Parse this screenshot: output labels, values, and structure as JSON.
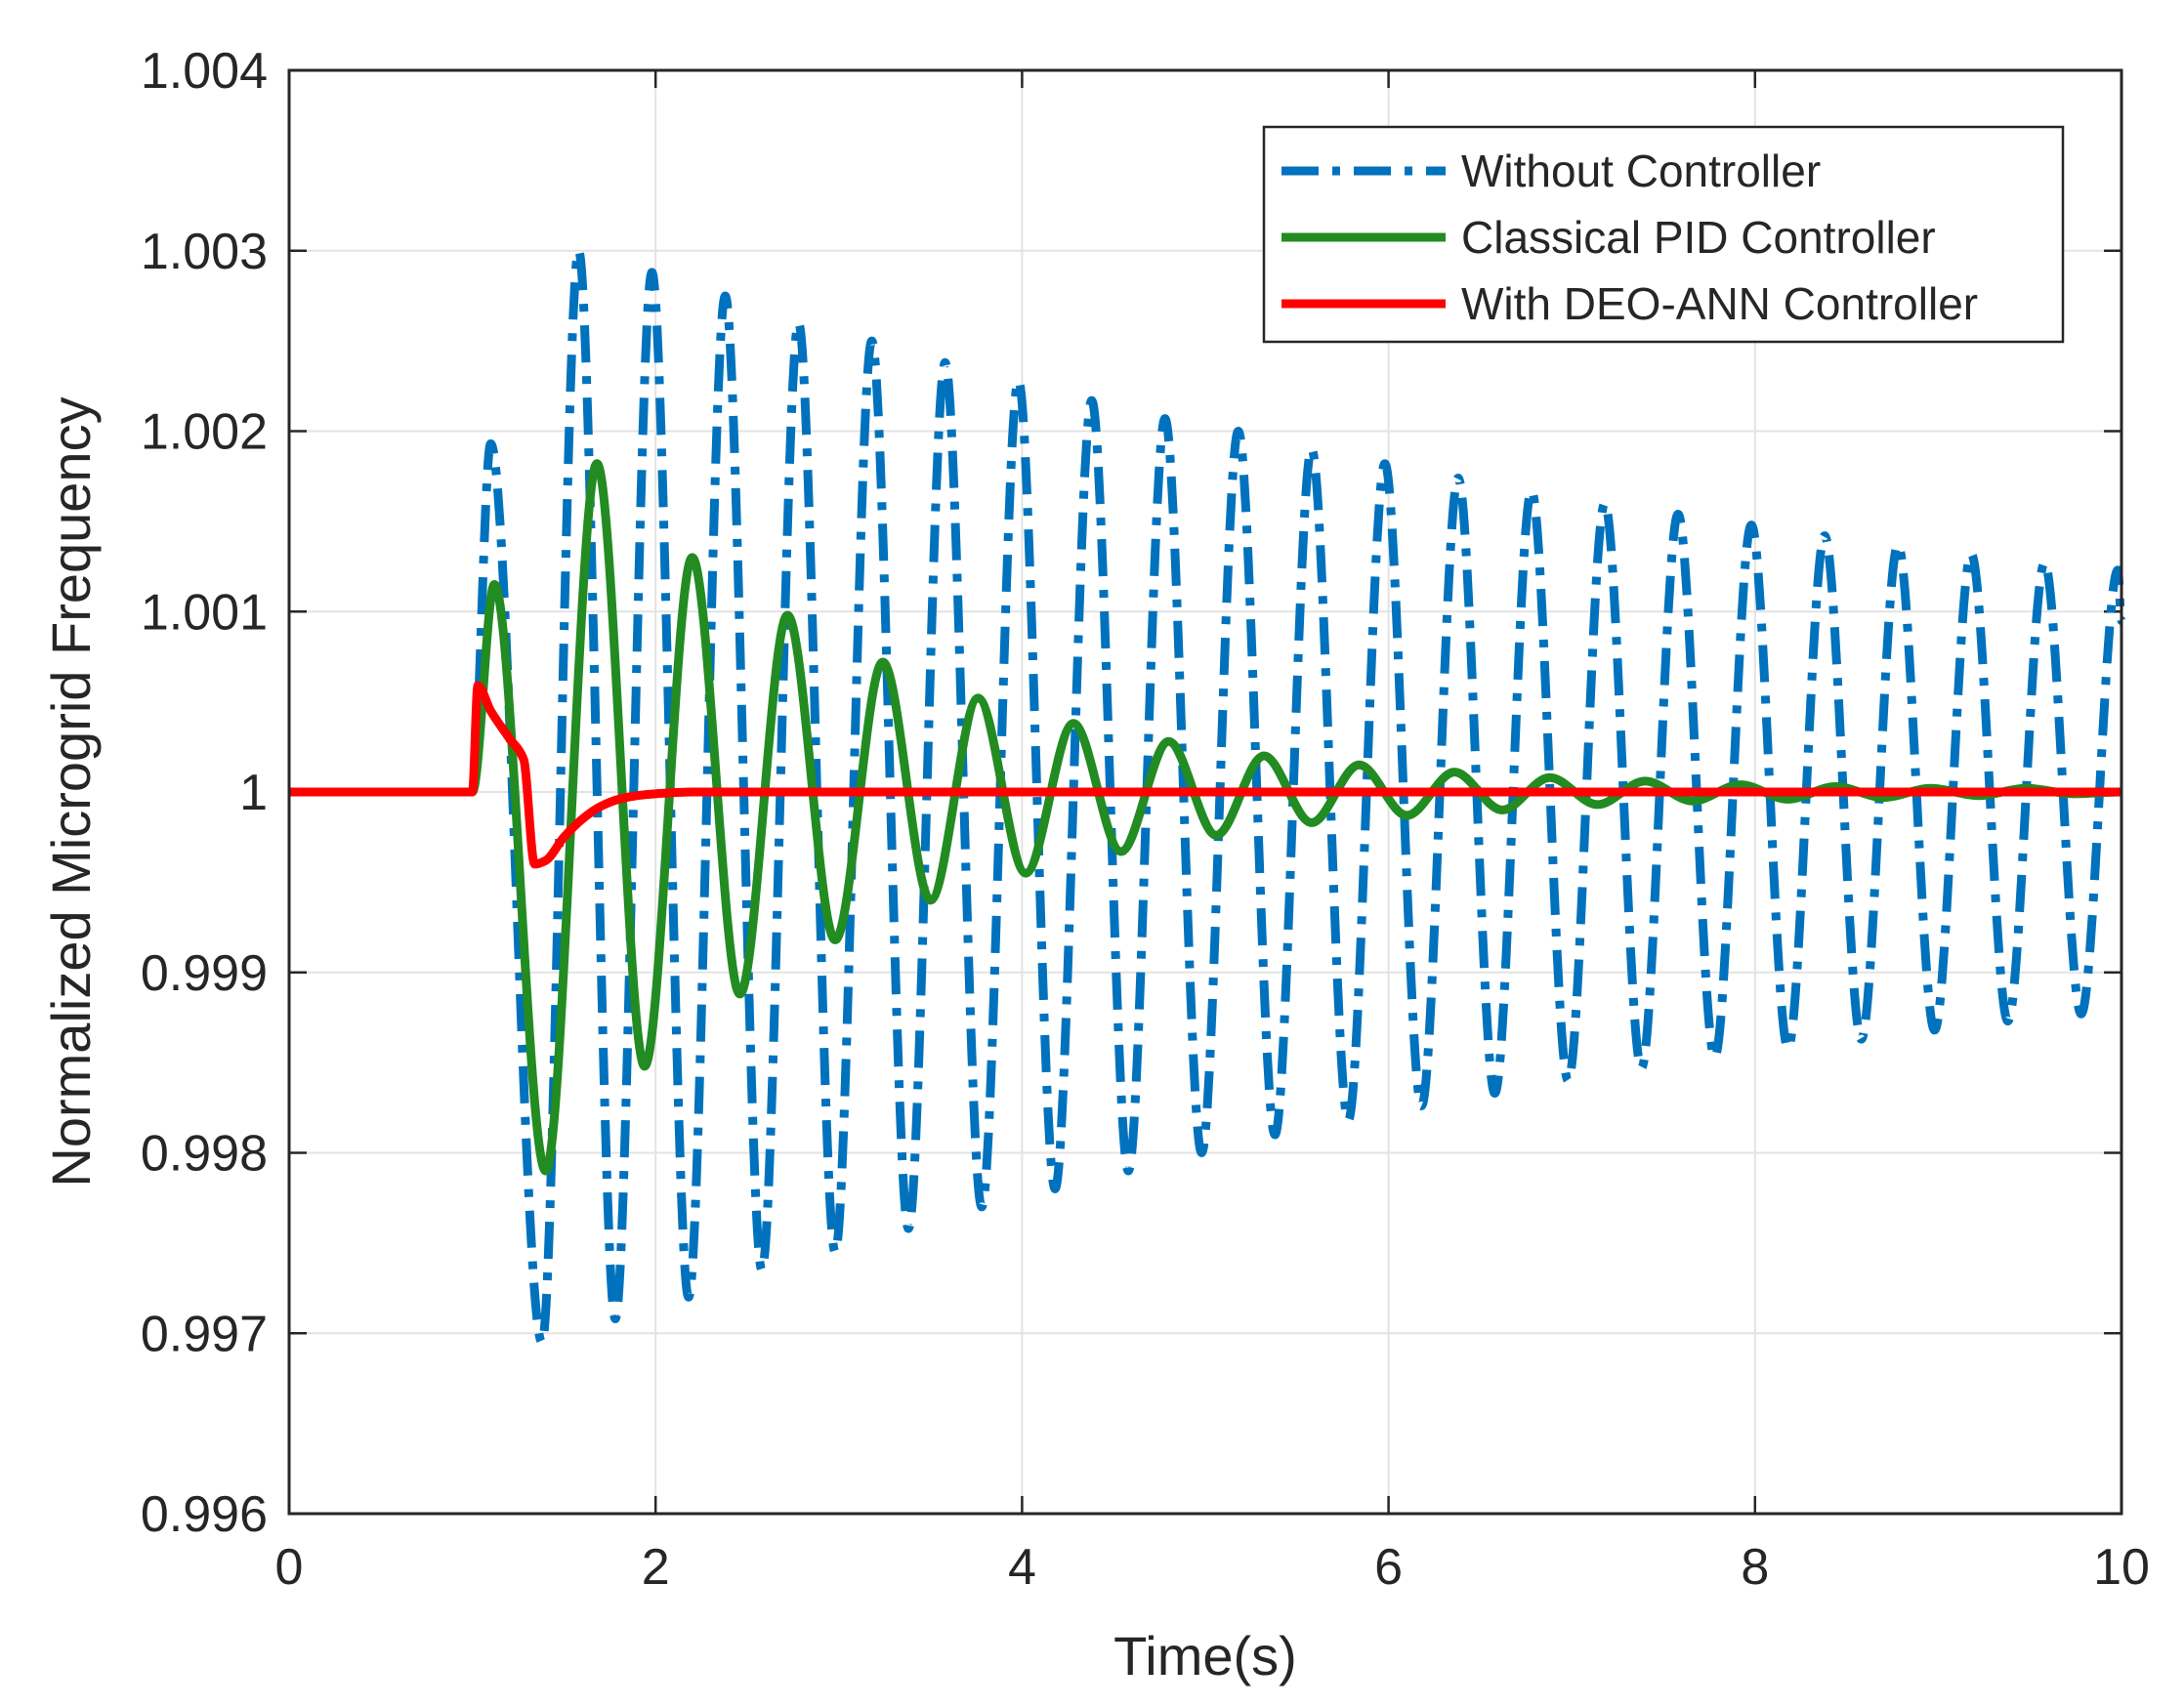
{
  "chart_data": {
    "type": "line",
    "title": "",
    "xlabel": "Time(s)",
    "ylabel": "Normalized Microgrid Frequency",
    "xlim": [
      0,
      10
    ],
    "ylim": [
      0.996,
      1.004
    ],
    "xticks": [
      0,
      2,
      4,
      6,
      8,
      10
    ],
    "xtick_labels": [
      "0",
      "2",
      "4",
      "6",
      "8",
      "10"
    ],
    "yticks": [
      0.996,
      0.997,
      0.998,
      0.999,
      1.0,
      1.001,
      1.002,
      1.003,
      1.004
    ],
    "ytick_labels": [
      "0.996",
      "0.997",
      "0.998",
      "0.999",
      "1",
      "1.001",
      "1.002",
      "1.003",
      "1.004"
    ],
    "grid": true,
    "legend_position": "top-right",
    "series": [
      {
        "name": "Without Controller",
        "color": "#0072BD",
        "style": "dash-dot",
        "x": [
          0,
          1.0,
          1.1,
          1.38,
          1.58,
          1.78,
          1.98,
          2.18,
          2.38,
          2.58,
          2.78,
          2.98,
          3.18,
          3.38,
          3.58,
          3.78,
          3.98,
          4.18,
          4.38,
          4.58,
          4.78,
          4.98,
          5.18,
          5.38,
          5.58,
          5.78,
          5.98,
          6.18,
          6.38,
          6.58,
          6.78,
          6.98,
          7.18,
          7.38,
          7.58,
          7.78,
          7.98,
          8.18,
          8.38,
          8.58,
          8.78,
          8.98,
          9.18,
          9.38,
          9.58,
          9.78,
          9.98,
          10.0
        ],
        "y": [
          1.0,
          1.0,
          1.00193,
          0.99695,
          1.003,
          0.99708,
          1.00288,
          0.9972,
          1.00275,
          0.99735,
          1.0026,
          0.99745,
          1.0025,
          0.99758,
          1.00238,
          0.9977,
          1.00228,
          0.9978,
          1.00217,
          0.9979,
          1.00207,
          0.998,
          1.002,
          0.9981,
          1.0019,
          0.99818,
          1.00182,
          0.99826,
          1.00174,
          0.99833,
          1.00167,
          0.9984,
          1.0016,
          0.99847,
          1.00154,
          0.99853,
          1.00148,
          0.99858,
          1.00142,
          0.99863,
          1.00137,
          0.99868,
          1.00132,
          0.99873,
          1.00127,
          0.99877,
          1.00123,
          1.00095
        ]
      },
      {
        "name": "Classical PID Controller",
        "color": "#228B22",
        "style": "solid",
        "x": [
          0,
          1.0,
          1.12,
          1.4,
          1.68,
          1.94,
          2.2,
          2.46,
          2.72,
          2.98,
          3.24,
          3.5,
          3.76,
          4.02,
          4.28,
          4.54,
          4.8,
          5.06,
          5.32,
          5.58,
          5.84,
          6.1,
          6.36,
          6.62,
          6.88,
          7.14,
          7.4,
          7.66,
          7.92,
          8.18,
          8.44,
          8.7,
          8.96,
          9.22,
          9.48,
          9.74,
          10.0
        ],
        "y": [
          1.0,
          1.0,
          1.00115,
          0.9979,
          1.00182,
          0.99848,
          1.0013,
          0.99888,
          1.00098,
          0.99918,
          1.00072,
          0.9994,
          1.00052,
          0.99955,
          1.00038,
          0.99967,
          1.00028,
          0.99976,
          1.0002,
          0.99983,
          1.00015,
          0.99987,
          1.00011,
          0.9999,
          1.00008,
          0.99993,
          1.00006,
          0.99995,
          1.00004,
          0.99996,
          1.00003,
          0.99997,
          1.00002,
          0.99998,
          1.00002,
          0.99999,
          1.0
        ]
      },
      {
        "name": "With DEO-ANN Controller",
        "color": "#FF0000",
        "style": "solid",
        "x": [
          0,
          1.0,
          1.03,
          1.1,
          1.2,
          1.28,
          1.34,
          1.4,
          1.5,
          1.6,
          1.7,
          1.8,
          1.9,
          2.0,
          2.2,
          10.0
        ],
        "y": [
          1.0,
          1.0,
          1.00059,
          1.00045,
          1.0003,
          1.00018,
          0.9996,
          0.99962,
          0.99975,
          0.99985,
          0.99992,
          0.99996,
          0.99998,
          0.99999,
          1.0,
          1.0
        ]
      }
    ]
  }
}
